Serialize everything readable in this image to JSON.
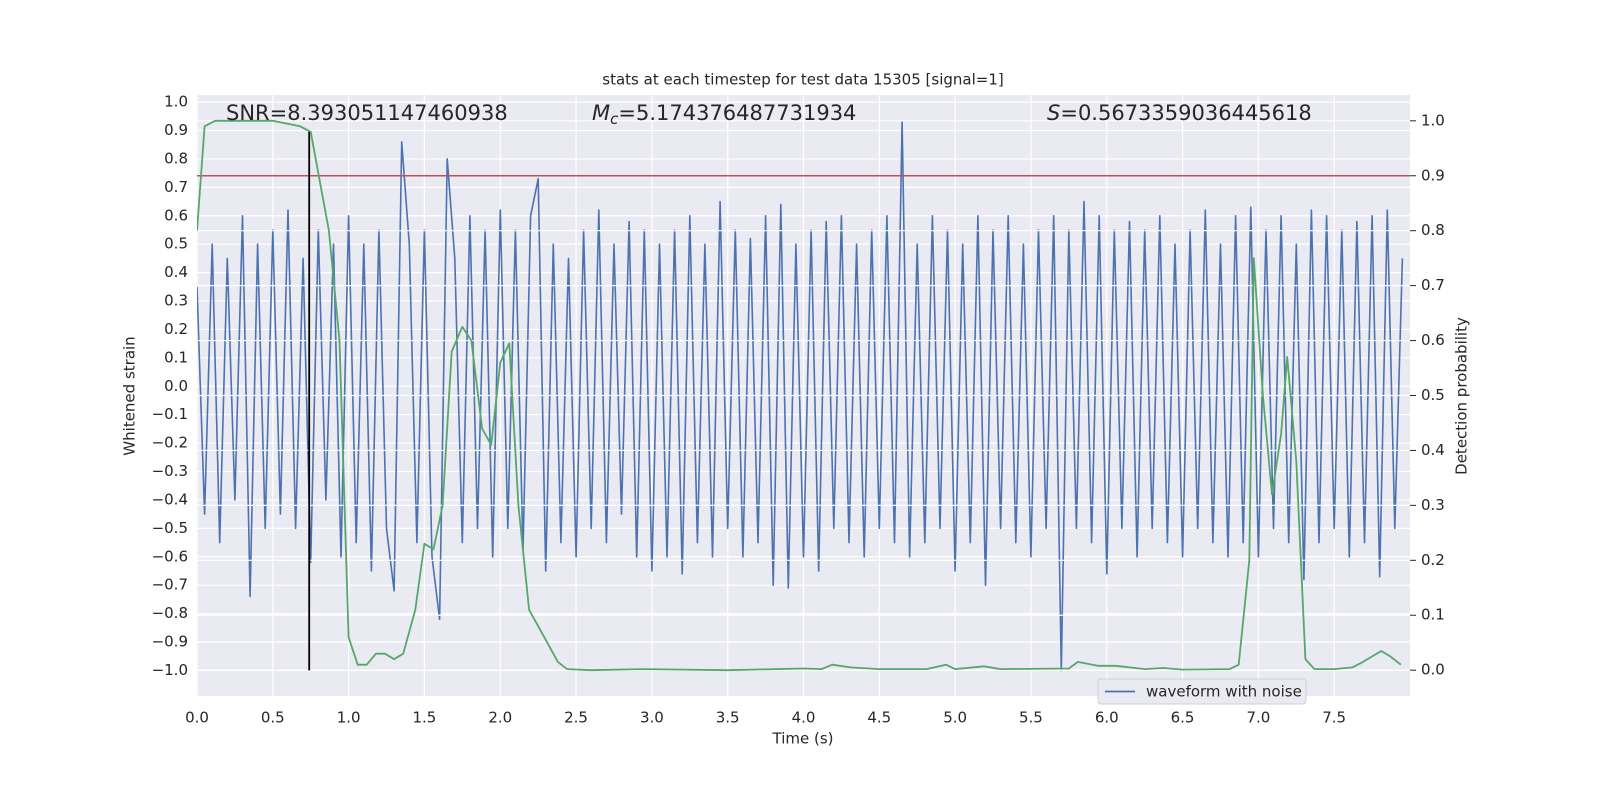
{
  "chart_data": {
    "type": "line",
    "title": "stats at each timestep for test data 15305 [signal=1]",
    "xlabel": "Time (s)",
    "ylabel": "Whitened strain",
    "y2label": "Detection probability",
    "annotations": [
      {
        "text": "SNR=8.393051147460938"
      },
      {
        "symbol": "M",
        "subscript": "c",
        "text": "=5.174376487731934"
      },
      {
        "symbol": "S",
        "text": "=0.5673359036445618"
      }
    ],
    "xlim": [
      0,
      8
    ],
    "ylim": [
      -1.09,
      1.025
    ],
    "y2lim": [
      -0.047,
      1.047
    ],
    "xticks": [
      {
        "value": 0,
        "label": "0.0"
      },
      0.5,
      {
        "value": 1,
        "label": "1.0"
      },
      1.5,
      {
        "value": 2,
        "label": "2.0"
      },
      2.5,
      {
        "value": 3,
        "label": "3.0"
      },
      3.5,
      {
        "value": 4,
        "label": "4.0"
      },
      4.5,
      {
        "value": 5,
        "label": "5.0"
      },
      5.5,
      {
        "value": 6,
        "label": "6.0"
      },
      6.5,
      {
        "value": 7,
        "label": "7.0"
      },
      7.5
    ],
    "yticks": [
      {
        "value": -1,
        "label": "−1.0"
      },
      {
        "value": -0.9,
        "label": "−0.9"
      },
      {
        "value": -0.8,
        "label": "−0.8"
      },
      {
        "value": -0.7,
        "label": "−0.7"
      },
      {
        "value": -0.6,
        "label": "−0.6"
      },
      {
        "value": -0.5,
        "label": "−0.5"
      },
      {
        "value": -0.4,
        "label": "−0.4"
      },
      {
        "value": -0.3,
        "label": "−0.3"
      },
      {
        "value": -0.2,
        "label": "−0.2"
      },
      {
        "value": -0.1,
        "label": "−0.1"
      },
      {
        "value": 0,
        "label": "0.0"
      },
      0.1,
      0.2,
      0.3,
      0.4,
      0.5,
      0.6,
      0.7,
      0.8,
      0.9,
      {
        "value": 1,
        "label": "1.0"
      }
    ],
    "y2ticks": [
      {
        "value": 0,
        "label": "0.0"
      },
      0.1,
      0.2,
      0.3,
      0.4,
      0.5,
      0.6,
      0.7,
      0.8,
      0.9,
      {
        "value": 1,
        "label": "1.0"
      }
    ],
    "grid": true,
    "background": "#eaeaf2",
    "legend": "lower right",
    "threshold": {
      "value": 0.9,
      "axis": "y2",
      "color": "#c44e52"
    },
    "vline": {
      "x": 0.74,
      "ymin": -1.0,
      "ymax": 0.9,
      "color": "#000000"
    },
    "series": [
      {
        "name": "waveform with noise",
        "color": "#4c72b0",
        "x": [
          0,
          0.05,
          0.1,
          0.15,
          0.2,
          0.25,
          0.3,
          0.35,
          0.4,
          0.45,
          0.5,
          0.55,
          0.6,
          0.65,
          0.7,
          0.75,
          0.8,
          0.85,
          0.9,
          0.95,
          1,
          1.05,
          1.1,
          1.15,
          1.2,
          1.25,
          1.3,
          1.35,
          1.4,
          1.45,
          1.5,
          1.55,
          1.6,
          1.65,
          1.7,
          1.75,
          1.8,
          1.85,
          1.9,
          1.95,
          2,
          2.05,
          2.1,
          2.15,
          2.2,
          2.25,
          2.3,
          2.35,
          2.4,
          2.45,
          2.5,
          2.55,
          2.6,
          2.65,
          2.7,
          2.75,
          2.8,
          2.85,
          2.9,
          2.95,
          3,
          3.05,
          3.1,
          3.15,
          3.2,
          3.25,
          3.3,
          3.35,
          3.4,
          3.45,
          3.5,
          3.55,
          3.6,
          3.65,
          3.7,
          3.75,
          3.8,
          3.85,
          3.9,
          3.95,
          4,
          4.05,
          4.1,
          4.15,
          4.2,
          4.25,
          4.3,
          4.35,
          4.4,
          4.45,
          4.5,
          4.55,
          4.6,
          4.65,
          4.7,
          4.75,
          4.8,
          4.85,
          4.9,
          4.95,
          5,
          5.05,
          5.1,
          5.15,
          5.2,
          5.25,
          5.3,
          5.35,
          5.4,
          5.45,
          5.5,
          5.55,
          5.6,
          5.65,
          5.7,
          5.75,
          5.8,
          5.85,
          5.9,
          5.95,
          6,
          6.05,
          6.1,
          6.15,
          6.2,
          6.25,
          6.3,
          6.35,
          6.4,
          6.45,
          6.5,
          6.55,
          6.6,
          6.65,
          6.7,
          6.75,
          6.8,
          6.85,
          6.9,
          6.95,
          7,
          7.05,
          7.1,
          7.15,
          7.2,
          7.25,
          7.3,
          7.35,
          7.4,
          7.45,
          7.5,
          7.55,
          7.6,
          7.65,
          7.7,
          7.75,
          7.8,
          7.85,
          7.9,
          7.95
        ],
        "values": [
          0.35,
          -0.45,
          0.5,
          -0.55,
          0.45,
          -0.4,
          0.6,
          -0.74,
          0.5,
          -0.5,
          0.55,
          -0.45,
          0.62,
          -0.5,
          0.45,
          -0.62,
          0.55,
          -0.4,
          0.5,
          -0.6,
          0.6,
          -0.55,
          0.5,
          -0.65,
          0.55,
          -0.5,
          -0.72,
          0.86,
          0.5,
          -0.55,
          0.55,
          -0.6,
          -0.82,
          0.8,
          0.45,
          -0.55,
          0.6,
          -0.5,
          0.55,
          -0.6,
          0.62,
          -0.5,
          0.55,
          -0.58,
          0.6,
          0.73,
          -0.65,
          0.5,
          -0.55,
          0.45,
          -0.6,
          0.55,
          -0.5,
          0.62,
          -0.55,
          0.5,
          -0.45,
          0.58,
          -0.6,
          0.55,
          -0.65,
          0.5,
          -0.6,
          0.55,
          -0.66,
          0.6,
          -0.55,
          0.5,
          -0.6,
          0.65,
          -0.5,
          0.55,
          -0.6,
          0.52,
          -0.55,
          0.6,
          -0.7,
          0.64,
          -0.71,
          0.5,
          -0.6,
          0.55,
          -0.65,
          0.58,
          -0.5,
          0.6,
          -0.55,
          0.5,
          -0.6,
          0.55,
          -0.5,
          0.6,
          -0.55,
          0.93,
          -0.6,
          0.5,
          -0.55,
          0.6,
          -0.5,
          0.55,
          -0.65,
          0.5,
          -0.55,
          0.6,
          -0.7,
          0.55,
          -0.5,
          0.6,
          -0.55,
          0.5,
          -0.6,
          0.55,
          -0.5,
          0.6,
          -1.0,
          0.55,
          -0.5,
          0.65,
          -0.55,
          0.6,
          -0.66,
          0.55,
          -0.5,
          0.58,
          -0.6,
          0.55,
          -0.5,
          0.6,
          -0.55,
          0.5,
          -0.6,
          0.55,
          -0.5,
          0.62,
          -0.55,
          0.5,
          -0.6,
          0.6,
          -0.55,
          0.63,
          -0.6,
          0.55,
          -0.5,
          0.6,
          -0.55,
          0.5,
          -0.68,
          0.62,
          -0.55,
          0.6,
          -0.5,
          0.55,
          -0.6,
          0.58,
          -0.55,
          0.6,
          -0.67,
          0.62,
          -0.5,
          0.45
        ]
      },
      {
        "color": "#55a868",
        "axis": "y2",
        "x": [
          0,
          0.05,
          0.12,
          0.3,
          0.5,
          0.68,
          0.75,
          0.87,
          0.94,
          1.0,
          1.06,
          1.12,
          1.18,
          1.24,
          1.3,
          1.36,
          1.44,
          1.5,
          1.56,
          1.62,
          1.68,
          1.75,
          1.81,
          1.88,
          1.94,
          2.0,
          2.06,
          2.12,
          2.19,
          2.25,
          2.31,
          2.38,
          2.44,
          2.6,
          2.94,
          3.5,
          4.0,
          4.12,
          4.19,
          4.31,
          4.5,
          4.81,
          4.94,
          5.0,
          5.19,
          5.3,
          5.75,
          5.81,
          5.94,
          6.06,
          6.25,
          6.37,
          6.5,
          6.81,
          6.87,
          6.94,
          6.97,
          7.03,
          7.09,
          7.15,
          7.19,
          7.25,
          7.31,
          7.37,
          7.5,
          7.62,
          7.69,
          7.81,
          7.87,
          7.94
        ],
        "values": [
          0.8,
          0.99,
          1.0,
          1.0,
          1.0,
          0.99,
          0.98,
          0.8,
          0.6,
          0.06,
          0.01,
          0.01,
          0.03,
          0.03,
          0.02,
          0.03,
          0.11,
          0.23,
          0.22,
          0.3,
          0.58,
          0.625,
          0.6,
          0.44,
          0.41,
          0.56,
          0.595,
          0.3,
          0.11,
          0.08,
          0.05,
          0.015,
          0.002,
          0.0,
          0.002,
          0.0,
          0.003,
          0.002,
          0.01,
          0.005,
          0.002,
          0.002,
          0.01,
          0.002,
          0.007,
          0.002,
          0.003,
          0.015,
          0.008,
          0.008,
          0.002,
          0.004,
          0.001,
          0.002,
          0.01,
          0.2,
          0.75,
          0.5,
          0.32,
          0.43,
          0.57,
          0.38,
          0.02,
          0.002,
          0.002,
          0.005,
          0.015,
          0.035,
          0.025,
          0.01
        ]
      }
    ]
  }
}
